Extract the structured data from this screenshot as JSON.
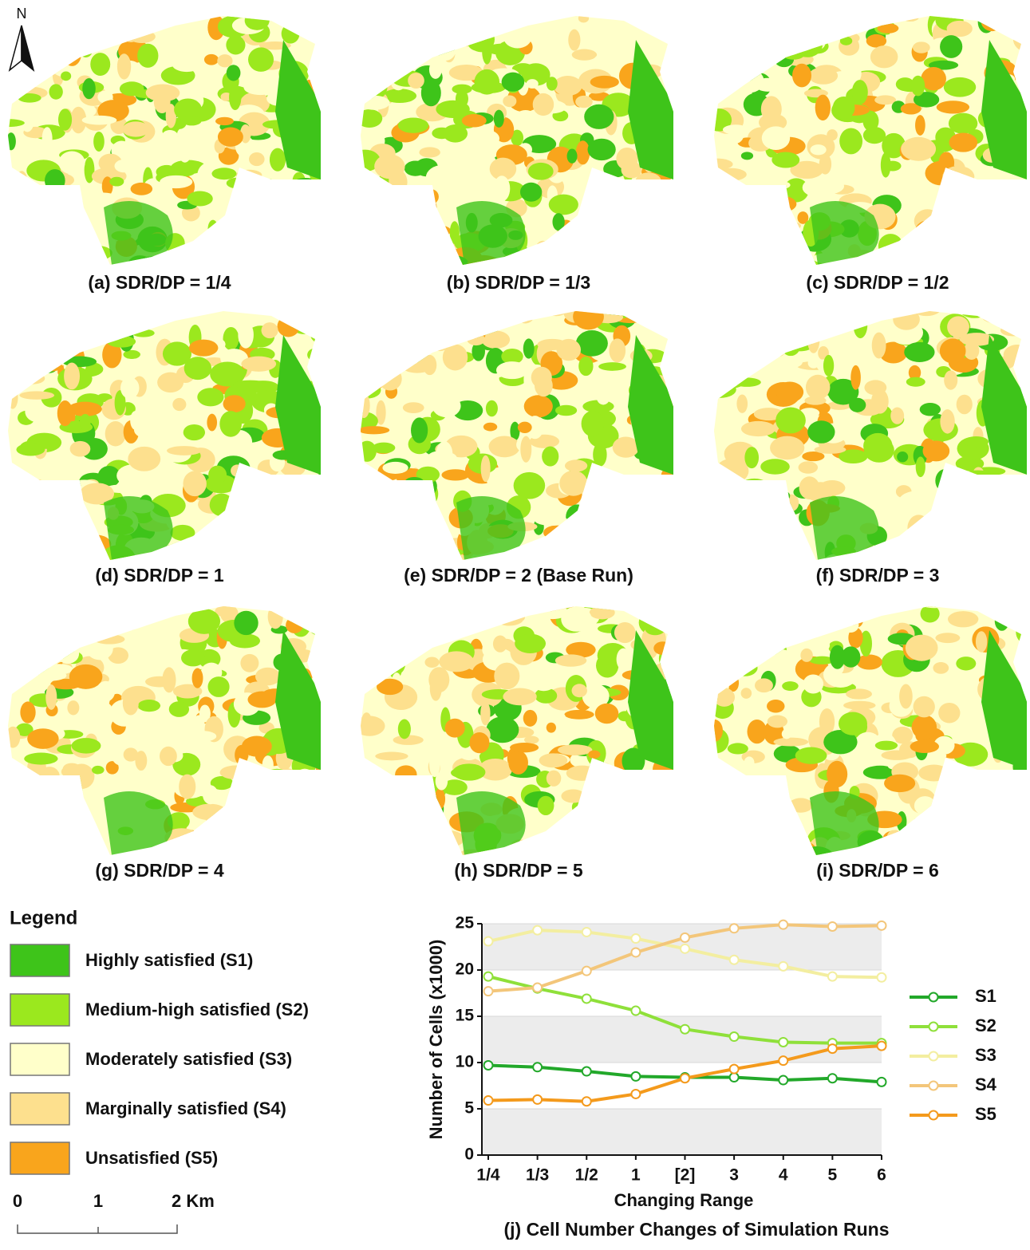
{
  "north": {
    "label": "N"
  },
  "maps": [
    {
      "caption": "(a) SDR/DP = 1/4"
    },
    {
      "caption": "(b) SDR/DP = 1/3"
    },
    {
      "caption": "(c) SDR/DP = 1/2"
    },
    {
      "caption": "(d) SDR/DP = 1"
    },
    {
      "caption": "(e) SDR/DP = 2 (Base Run)"
    },
    {
      "caption": "(f) SDR/DP = 3"
    },
    {
      "caption": "(g) SDR/DP = 4"
    },
    {
      "caption": "(h) SDR/DP = 5"
    },
    {
      "caption": "(i) SDR/DP = 6"
    }
  ],
  "legend": {
    "title": "Legend",
    "items": [
      {
        "label": "Highly satisfied (S1)",
        "color": "#3ec41a"
      },
      {
        "label": "Medium-high satisfied (S2)",
        "color": "#9be81e"
      },
      {
        "label": "Moderately satisfied (S3)",
        "color": "#ffffca"
      },
      {
        "label": "Marginally satisfied (S4)",
        "color": "#fde08e"
      },
      {
        "label": "Unsatisfied (S5)",
        "color": "#f9a51c"
      }
    ]
  },
  "scale_bar": {
    "labels": [
      "0",
      "1",
      "2 Km"
    ]
  },
  "chart_data": {
    "type": "line",
    "title": "(j) Cell Number Changes of Simulation Runs",
    "x_label": "Changing Range",
    "y_label": "Number of Cells (x1000)",
    "categories": [
      "1/4",
      "1/3",
      "1/2",
      "1",
      "[2]",
      "3",
      "4",
      "5",
      "6"
    ],
    "series": [
      {
        "name": "S1",
        "color": "#22a82a",
        "values": [
          9.7,
          9.5,
          9.05,
          8.5,
          8.4,
          8.4,
          8.1,
          8.3,
          7.9
        ]
      },
      {
        "name": "S2",
        "color": "#8fe03a",
        "values": [
          19.3,
          18.0,
          16.9,
          15.6,
          13.6,
          12.8,
          12.2,
          12.1,
          12.1
        ]
      },
      {
        "name": "S3",
        "color": "#f3eea0",
        "values": [
          23.1,
          24.3,
          24.1,
          23.4,
          22.3,
          21.1,
          20.4,
          19.3,
          19.2
        ]
      },
      {
        "name": "S4",
        "color": "#f3c67a",
        "values": [
          17.7,
          18.1,
          19.9,
          21.9,
          23.5,
          24.5,
          24.9,
          24.7,
          24.8
        ]
      },
      {
        "name": "S5",
        "color": "#f49a1c",
        "values": [
          5.9,
          6.0,
          5.8,
          6.6,
          8.3,
          9.3,
          10.2,
          11.5,
          11.8
        ]
      }
    ],
    "ylim": [
      0,
      25
    ],
    "yticks": [
      0,
      5,
      10,
      15,
      20,
      25
    ],
    "grid": true
  }
}
